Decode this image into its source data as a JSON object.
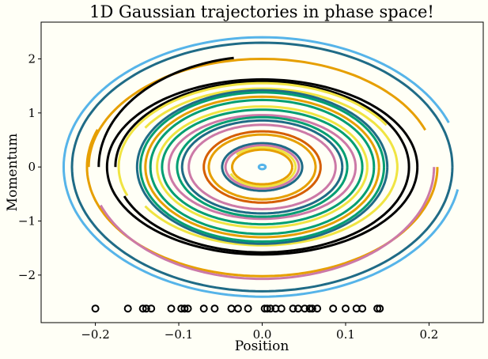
{
  "chart_data": {
    "type": "line",
    "title": "1D Gaussian trajectories in phase space!",
    "xlabel": "Position",
    "ylabel": "Momentum",
    "xlim": [
      -0.265,
      0.265
    ],
    "ylim": [
      -2.88,
      2.68
    ],
    "xticks": [
      -0.2,
      -0.1,
      0.0,
      0.1,
      0.2
    ],
    "xtick_labels": [
      "−0.2",
      "−0.1",
      "0.0",
      "0.1",
      "0.2"
    ],
    "yticks": [
      -2,
      -1,
      0,
      1,
      2
    ],
    "ytick_labels": [
      "−2",
      "−1",
      "0",
      "1",
      "2"
    ],
    "grid": false,
    "background": "#fffff6",
    "series": [
      {
        "amplitude": 0.238,
        "momentum": 2.4,
        "start_deg": 20,
        "span_deg": 330,
        "color": "#56b4e9",
        "width": 3
      },
      {
        "amplitude": 0.228,
        "momentum": 2.3,
        "start_deg": 0,
        "span_deg": 360,
        "color": "#1f6b86",
        "width": 3
      },
      {
        "amplitude": 0.21,
        "momentum": 2.02,
        "start_deg": 160,
        "span_deg": 200,
        "color": "#e69f00",
        "width": 3
      },
      {
        "amplitude": 0.208,
        "momentum": 2.0,
        "start_deg": 20,
        "span_deg": 160,
        "color": "#e69f00",
        "width": 3
      },
      {
        "amplitude": 0.206,
        "momentum": 2.07,
        "start_deg": 200,
        "span_deg": 160,
        "color": "#cc79a7",
        "width": 3
      },
      {
        "amplitude": 0.196,
        "momentum": 2.05,
        "start_deg": 100,
        "span_deg": 80,
        "color": "#000000",
        "width": 3
      },
      {
        "amplitude": 0.186,
        "momentum": 1.62,
        "start_deg": 0,
        "span_deg": 360,
        "color": "#000000",
        "width": 3
      },
      {
        "amplitude": 0.176,
        "momentum": 1.58,
        "start_deg": 200,
        "span_deg": 340,
        "color": "#000000",
        "width": 3
      },
      {
        "amplitude": 0.172,
        "momentum": 1.55,
        "start_deg": 30,
        "span_deg": 170,
        "color": "#f0e442",
        "width": 3
      },
      {
        "amplitude": 0.162,
        "momentum": 1.45,
        "start_deg": 210,
        "span_deg": 300,
        "color": "#f0e442",
        "width": 3
      },
      {
        "amplitude": 0.15,
        "momentum": 1.42,
        "start_deg": 0,
        "span_deg": 360,
        "color": "#1f6b86",
        "width": 3
      },
      {
        "amplitude": 0.146,
        "momentum": 1.38,
        "start_deg": 0,
        "span_deg": 360,
        "color": "#009e73",
        "width": 3
      },
      {
        "amplitude": 0.14,
        "momentum": 1.3,
        "start_deg": 0,
        "span_deg": 360,
        "color": "#e69f00",
        "width": 3
      },
      {
        "amplitude": 0.134,
        "momentum": 1.24,
        "start_deg": 0,
        "span_deg": 360,
        "color": "#009e73",
        "width": 3
      },
      {
        "amplitude": 0.126,
        "momentum": 1.12,
        "start_deg": 0,
        "span_deg": 360,
        "color": "#f0e442",
        "width": 3
      },
      {
        "amplitude": 0.12,
        "momentum": 1.06,
        "start_deg": 0,
        "span_deg": 360,
        "color": "#009e73",
        "width": 3
      },
      {
        "amplitude": 0.112,
        "momentum": 0.96,
        "start_deg": 0,
        "span_deg": 360,
        "color": "#cc79a7",
        "width": 3
      },
      {
        "amplitude": 0.102,
        "momentum": 0.92,
        "start_deg": 0,
        "span_deg": 360,
        "color": "#009e73",
        "width": 3
      },
      {
        "amplitude": 0.096,
        "momentum": 0.86,
        "start_deg": 0,
        "span_deg": 360,
        "color": "#1f6b86",
        "width": 3
      },
      {
        "amplitude": 0.088,
        "momentum": 0.78,
        "start_deg": 0,
        "span_deg": 360,
        "color": "#cc79a7",
        "width": 3
      },
      {
        "amplitude": 0.07,
        "momentum": 0.66,
        "start_deg": 0,
        "span_deg": 360,
        "color": "#d55e00",
        "width": 3
      },
      {
        "amplitude": 0.064,
        "momentum": 0.6,
        "start_deg": 0,
        "span_deg": 360,
        "color": "#e69f00",
        "width": 3
      },
      {
        "amplitude": 0.048,
        "momentum": 0.44,
        "start_deg": 0,
        "span_deg": 360,
        "color": "#1f6b86",
        "width": 3
      },
      {
        "amplitude": 0.044,
        "momentum": 0.4,
        "start_deg": 0,
        "span_deg": 360,
        "color": "#cc79a7",
        "width": 3
      },
      {
        "amplitude": 0.04,
        "momentum": 0.36,
        "start_deg": 200,
        "span_deg": 300,
        "color": "#f0e442",
        "width": 3
      },
      {
        "amplitude": 0.036,
        "momentum": 0.32,
        "start_deg": 0,
        "span_deg": 360,
        "color": "#e69f00",
        "width": 3
      },
      {
        "amplitude": 0.004,
        "momentum": 0.04,
        "start_deg": 0,
        "span_deg": 360,
        "color": "#56b4e9",
        "width": 3
      }
    ],
    "initial_positions": {
      "y": -2.62,
      "marker": "open-circle",
      "color": "#000000",
      "x": [
        -0.2,
        -0.161,
        -0.143,
        -0.139,
        -0.133,
        -0.109,
        -0.097,
        -0.093,
        -0.089,
        -0.07,
        -0.057,
        -0.037,
        -0.029,
        -0.017,
        0.003,
        0.006,
        0.01,
        0.016,
        0.023,
        0.037,
        0.043,
        0.051,
        0.057,
        0.06,
        0.066,
        0.085,
        0.1,
        0.113,
        0.12,
        0.138,
        0.141
      ]
    }
  }
}
